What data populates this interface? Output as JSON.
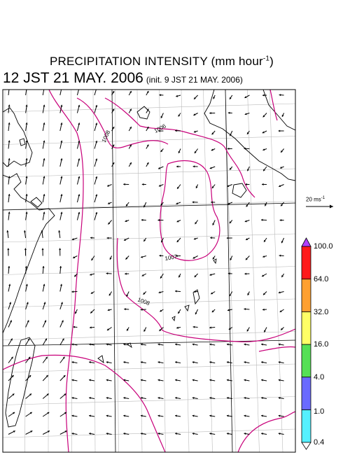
{
  "title": {
    "text": "PRECIPITATION INTENSITY (mm hour",
    "sup": "-1",
    "close": ")"
  },
  "subtitle": {
    "valid_time": "12 JST 21 MAY. 2006",
    "init_time": "(init. 9 JST 21 MAY. 2006)"
  },
  "vector_scale": {
    "label": "20 ms",
    "sup": "-1"
  },
  "isobars": [
    {
      "label": "1006"
    },
    {
      "label": "1007"
    },
    {
      "label": "1008"
    },
    {
      "label": "1009"
    }
  ],
  "colorbar": {
    "colors": [
      "#55f0ff",
      "#6a6aff",
      "#55e055",
      "#ffff66",
      "#ffa030",
      "#ff1a1a",
      "#b040ff"
    ],
    "labels": [
      "0.4",
      "1.0",
      "4.0",
      "16.0",
      "32.0",
      "64.0",
      "100.0"
    ]
  },
  "colors": {
    "isobar": "#c8007a",
    "land": "#000000",
    "grid": "#bbbbbb",
    "arrows": "#000000"
  }
}
